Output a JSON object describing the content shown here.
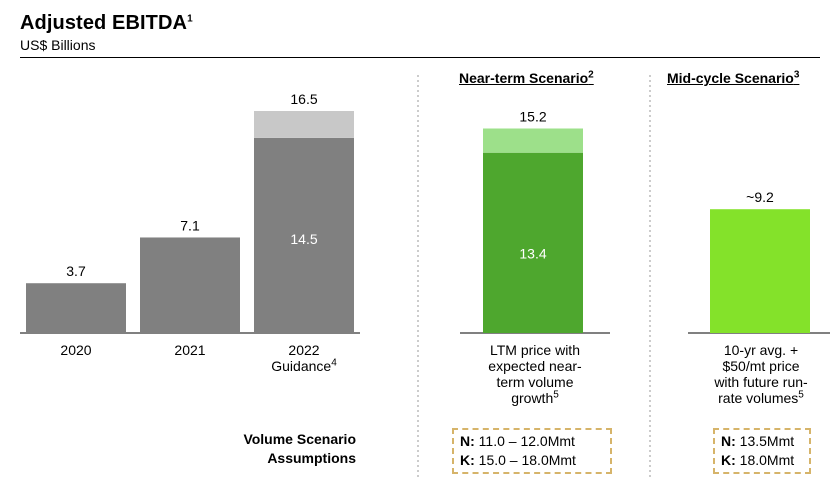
{
  "title": "Adjusted EBITDA",
  "title_sup": "1",
  "subtitle": "US$ Billions",
  "scenarios": {
    "near_term": {
      "label": "Near-term Scenario",
      "sup": "2"
    },
    "mid_cycle": {
      "label": "Mid-cycle Scenario",
      "sup": "3"
    }
  },
  "categories": [
    {
      "label": "2020"
    },
    {
      "label": "2021"
    },
    {
      "label_lines": [
        "2022",
        "Guidance"
      ],
      "sup": "4"
    },
    {
      "label_lines": [
        "LTM price with",
        "expected near-",
        "term volume",
        "growth"
      ],
      "sup": "5"
    },
    {
      "label_lines": [
        "10-yr avg. +",
        "$50/mt price",
        "with future run-",
        "rate volumes"
      ],
      "sup": "5"
    }
  ],
  "volume_scenario": {
    "label_lines": [
      "Volume Scenario",
      "Assumptions"
    ],
    "near_term": [
      {
        "key": "N:",
        "value": "11.0 – 12.0Mmt"
      },
      {
        "key": "K:",
        "value": "15.0 – 18.0Mmt"
      }
    ],
    "mid_cycle": [
      {
        "key": "N:",
        "value": "13.5Mmt"
      },
      {
        "key": "K:",
        "value": "18.0Mmt"
      }
    ]
  },
  "colors": {
    "gray_bar": "#808080",
    "gray_bar_light": "#c8c8c8",
    "green_dark": "#4ea72e",
    "green_light": "#9de08a",
    "lime": "#84e22a",
    "assumption_border": "#d6b46a"
  },
  "chart_data": {
    "type": "bar",
    "stacked": true,
    "categories": [
      "2020",
      "2021",
      "2022 Guidance",
      "Near-term Scenario",
      "Mid-cycle Scenario"
    ],
    "bars": [
      {
        "category": "2020",
        "base": 3.7,
        "total": 3.7,
        "total_label": "3.7"
      },
      {
        "category": "2021",
        "base": 7.1,
        "total": 7.1,
        "total_label": "7.1"
      },
      {
        "category": "2022 Guidance",
        "base": 14.5,
        "base_label": "14.5",
        "total": 16.5,
        "total_label": "16.5"
      },
      {
        "category": "Near-term Scenario",
        "base": 13.4,
        "base_label": "13.4",
        "total": 15.2,
        "total_label": "15.2"
      },
      {
        "category": "Mid-cycle Scenario",
        "base": 9.2,
        "total": 9.2,
        "total_label": "~9.2"
      }
    ],
    "ylim": [
      0,
      16.5
    ],
    "grid": false,
    "legend": "none"
  }
}
